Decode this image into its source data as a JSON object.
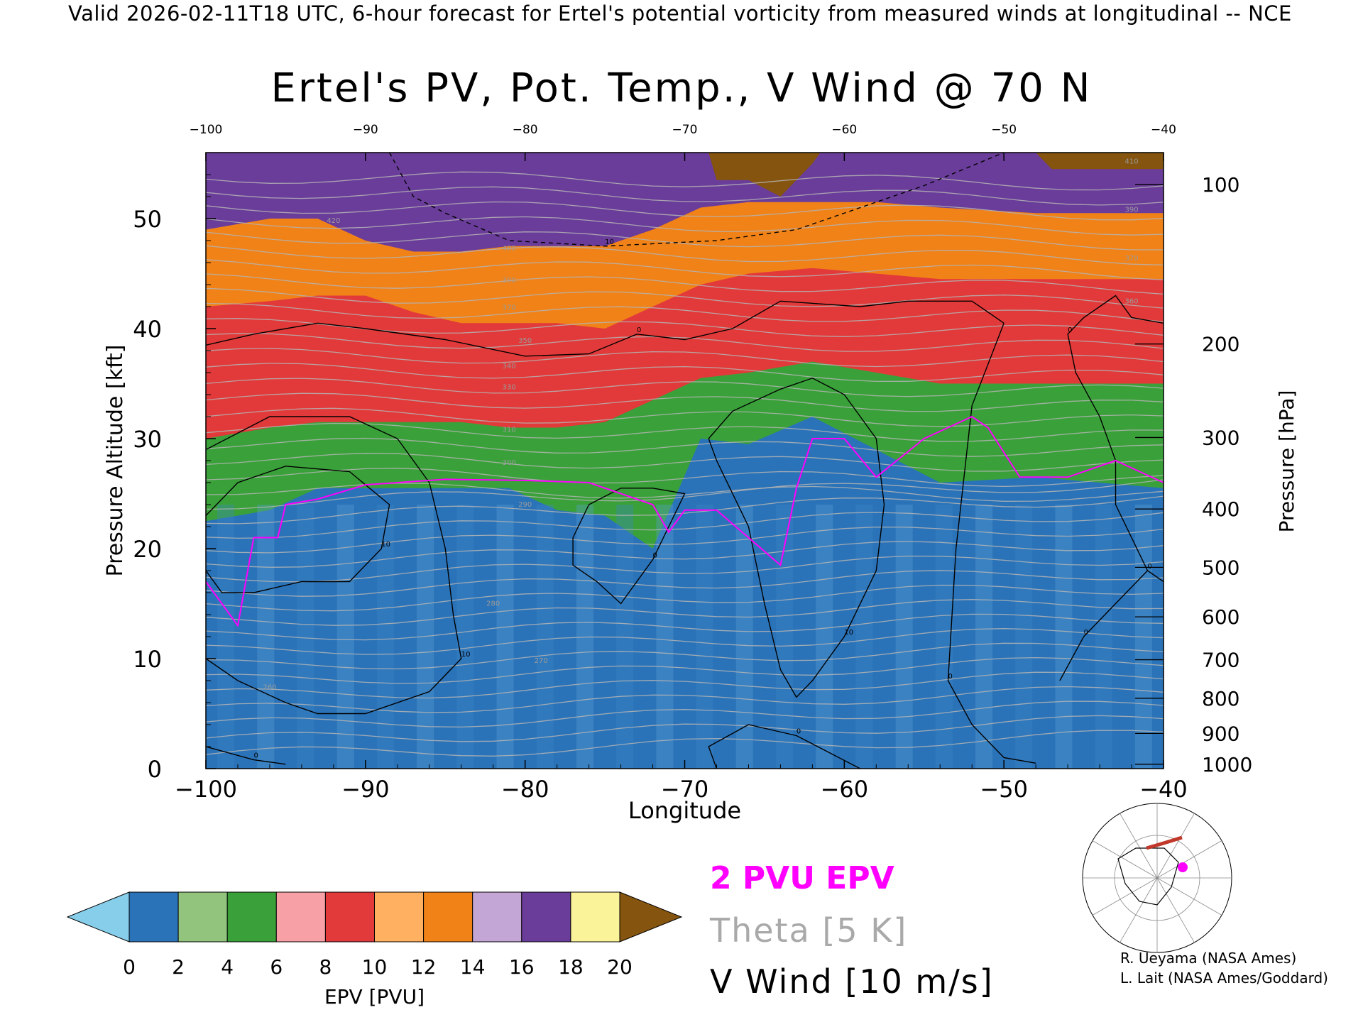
{
  "header": "Valid 2026-02-11T18 UTC, 6-hour forecast for Ertel's potential vorticity from measured winds at longitudinal -- NCE",
  "chart_data": {
    "type": "heatmap",
    "title": "Ertel's PV, Pot. Temp., V Wind @ 70 N",
    "xlabel": "Longitude",
    "ylabel": "Pressure Altitude [kft]",
    "y2label": "Pressure [hPa]",
    "xlim": [
      -100,
      -40
    ],
    "ylim": [
      0,
      56
    ],
    "x_ticks": [
      "−100",
      "−90",
      "−80",
      "−70",
      "−60",
      "−50",
      "−40"
    ],
    "x_top_ticks": [
      "−100",
      "−90",
      "−80",
      "−70",
      "−60",
      "−50",
      "−40"
    ],
    "y_ticks": [
      "0",
      "10",
      "20",
      "30",
      "40",
      "50"
    ],
    "pressure_ticks": [
      {
        "label": "100",
        "kft": 53.1
      },
      {
        "label": "200",
        "kft": 38.6
      },
      {
        "label": "300",
        "kft": 30.1
      },
      {
        "label": "400",
        "kft": 23.6
      },
      {
        "label": "500",
        "kft": 18.3
      },
      {
        "label": "600",
        "kft": 13.8
      },
      {
        "label": "700",
        "kft": 9.9
      },
      {
        "label": "800",
        "kft": 6.4
      },
      {
        "label": "900",
        "kft": 3.2
      },
      {
        "label": "1000",
        "kft": 0.4
      }
    ],
    "layers_pvu": [
      {
        "name": "lower",
        "pvu": 1.0,
        "top_kft": [
          22.5,
          23.5,
          25.5,
          25.5,
          25.5,
          25.5,
          25.5,
          23.5,
          23.0,
          20.0,
          30.0,
          29.5,
          32.0,
          29.0,
          26.0,
          26.5,
          25.5
        ]
      },
      {
        "name": "green",
        "pvu": 5.0,
        "top_kft": [
          30.0,
          31.0,
          31.5,
          31.5,
          31.5,
          31.5,
          31.0,
          31.0,
          31.5,
          33.5,
          35.5,
          36.0,
          37.0,
          36.0,
          35.0,
          35.0,
          35.0
        ]
      },
      {
        "name": "red",
        "pvu": 9.0,
        "top_kft": [
          42.0,
          42.5,
          43.0,
          43.0,
          41.5,
          40.5,
          40.5,
          40.5,
          40.0,
          42.0,
          44.0,
          45.0,
          45.5,
          45.0,
          44.5,
          44.5,
          44.5
        ]
      },
      {
        "name": "orange",
        "pvu": 12.0,
        "top_kft": [
          49.0,
          50.0,
          50.0,
          48.0,
          47.0,
          47.0,
          47.5,
          47.5,
          47.5,
          49.0,
          51.0,
          51.5,
          51.5,
          51.5,
          51.0,
          50.5,
          50.5
        ]
      },
      {
        "name": "purple",
        "pvu": 16.0,
        "top_kft": [
          56.0,
          56.0,
          56.0,
          56.0,
          56.0,
          56.0,
          56.0,
          56.0,
          56.0,
          56.0,
          56.0,
          56.0,
          56.0,
          56.0,
          56.0,
          56.0,
          56.0
        ]
      },
      {
        "name": "yellow",
        "pvu": 19.0,
        "top_kft": [
          56.0,
          56.0,
          56.0,
          56.0,
          56.0,
          56.0,
          56.0,
          56.0,
          55.5,
          54.0,
          55.0,
          55.5,
          56.0,
          56.0,
          56.0,
          56.0,
          56.0
        ]
      }
    ],
    "layer_x": [
      -100,
      -96,
      -93,
      -90,
      -87,
      -84,
      -81,
      -78,
      -75,
      -72,
      -69,
      -66,
      -62,
      -58,
      -54,
      -48,
      -40
    ],
    "theta_labels": [
      {
        "label": "260",
        "x": -96,
        "y": 7.2
      },
      {
        "label": "270",
        "x": -79,
        "y": 9.6
      },
      {
        "label": "280",
        "x": -82,
        "y": 14.8
      },
      {
        "label": "290",
        "x": -80,
        "y": 23.8
      },
      {
        "label": "300",
        "x": -81,
        "y": 27.6
      },
      {
        "label": "310",
        "x": -81,
        "y": 30.6
      },
      {
        "label": "330",
        "x": -81,
        "y": 34.5
      },
      {
        "label": "340",
        "x": -81,
        "y": 36.4
      },
      {
        "label": "350",
        "x": -80,
        "y": 38.7
      },
      {
        "label": "370",
        "x": -81,
        "y": 41.7
      },
      {
        "label": "390",
        "x": -81,
        "y": 44.2
      },
      {
        "label": "400",
        "x": -81,
        "y": 47.1
      },
      {
        "label": "420",
        "x": -92,
        "y": 49.6
      },
      {
        "label": "360",
        "x": -42,
        "y": 42.3
      },
      {
        "label": "370",
        "x": -42,
        "y": 46.2
      },
      {
        "label": "390",
        "x": -42,
        "y": 50.6
      },
      {
        "label": "410",
        "x": -42,
        "y": 55.0
      }
    ],
    "epv_2pvu": [
      {
        "x": -100,
        "y": 17
      },
      {
        "x": -98,
        "y": 13
      },
      {
        "x": -97,
        "y": 21
      },
      {
        "x": -95.5,
        "y": 21
      },
      {
        "x": -95,
        "y": 24
      },
      {
        "x": -93,
        "y": 24.5
      },
      {
        "x": -90,
        "y": 25.8
      },
      {
        "x": -85,
        "y": 26.3
      },
      {
        "x": -80,
        "y": 26.2
      },
      {
        "x": -76,
        "y": 26
      },
      {
        "x": -72,
        "y": 24
      },
      {
        "x": -71,
        "y": 21.5
      },
      {
        "x": -70,
        "y": 23.5
      },
      {
        "x": -68,
        "y": 23.5
      },
      {
        "x": -64,
        "y": 18.5
      },
      {
        "x": -63,
        "y": 25.5
      },
      {
        "x": -62,
        "y": 30
      },
      {
        "x": -60,
        "y": 30
      },
      {
        "x": -58,
        "y": 26.5
      },
      {
        "x": -55,
        "y": 30
      },
      {
        "x": -52,
        "y": 32
      },
      {
        "x": -51,
        "y": 31
      },
      {
        "x": -49,
        "y": 26.5
      },
      {
        "x": -46,
        "y": 26.5
      },
      {
        "x": -43,
        "y": 28
      },
      {
        "x": -40,
        "y": 26
      }
    ],
    "vwind_contours": [
      {
        "label": "10",
        "dashed": true,
        "points": [
          [
            -88.5,
            56
          ],
          [
            -87,
            52
          ],
          [
            -85,
            50.5
          ],
          [
            -81,
            48
          ],
          [
            -75,
            47.5
          ],
          [
            -68,
            48
          ],
          [
            -63,
            49
          ],
          [
            -55,
            53
          ],
          [
            -50,
            56
          ]
        ]
      },
      {
        "label": "0",
        "dashed": false,
        "points": [
          [
            -100,
            38.5
          ],
          [
            -97,
            39.5
          ],
          [
            -93,
            40.5
          ],
          [
            -90,
            40
          ],
          [
            -85,
            39
          ],
          [
            -80,
            37.5
          ],
          [
            -76,
            37.7
          ],
          [
            -73,
            39.5
          ],
          [
            -70,
            39
          ],
          [
            -67,
            40
          ],
          [
            -64,
            42.5
          ],
          [
            -59,
            42
          ],
          [
            -56,
            42.5
          ],
          [
            -52,
            42.5
          ],
          [
            -50,
            40.5
          ]
        ]
      },
      {
        "label": "0",
        "dashed": false,
        "points": [
          [
            -40,
            40.5
          ],
          [
            -42,
            41
          ],
          [
            -43,
            43
          ],
          [
            -45,
            41
          ],
          [
            -46,
            39.5
          ],
          [
            -45.5,
            36
          ],
          [
            -44,
            32
          ],
          [
            -43,
            28
          ]
        ]
      },
      {
        "label": "10",
        "dashed": false,
        "points": [
          [
            -100,
            29
          ],
          [
            -96,
            32
          ],
          [
            -91,
            32
          ],
          [
            -88,
            30
          ],
          [
            -86,
            26
          ],
          [
            -85,
            20
          ],
          [
            -84.5,
            14
          ],
          [
            -84,
            10
          ],
          [
            -86,
            7
          ],
          [
            -90,
            5
          ],
          [
            -93,
            5
          ],
          [
            -95,
            6
          ],
          [
            -98,
            8
          ],
          [
            -100,
            10
          ]
        ]
      },
      {
        "label": "10",
        "dashed": false,
        "points": [
          [
            -100,
            23
          ],
          [
            -98,
            26
          ],
          [
            -95,
            27.5
          ],
          [
            -91,
            27
          ],
          [
            -88.5,
            24
          ],
          [
            -89,
            20
          ],
          [
            -91,
            17
          ],
          [
            -94,
            17
          ],
          [
            -97,
            16
          ],
          [
            -99,
            16
          ],
          [
            -100,
            18
          ]
        ]
      },
      {
        "label": "0",
        "dashed": false,
        "points": [
          [
            -76,
            24
          ],
          [
            -77,
            21
          ],
          [
            -77,
            18.5
          ],
          [
            -75.5,
            17
          ],
          [
            -74,
            15
          ],
          [
            -72,
            19
          ],
          [
            -70,
            25
          ],
          [
            -72,
            25.5
          ],
          [
            -74,
            25.5
          ],
          [
            -76,
            24
          ]
        ]
      },
      {
        "label": "10",
        "dashed": false,
        "points": [
          [
            -68.5,
            30
          ],
          [
            -67,
            32.5
          ],
          [
            -64,
            34.5
          ],
          [
            -62,
            35.5
          ],
          [
            -60,
            34
          ],
          [
            -58,
            30
          ],
          [
            -57.5,
            24
          ],
          [
            -58,
            18
          ],
          [
            -60,
            12
          ],
          [
            -62,
            8
          ],
          [
            -63,
            6.5
          ],
          [
            -64,
            9
          ],
          [
            -65,
            15
          ],
          [
            -66,
            22
          ],
          [
            -68,
            28
          ],
          [
            -68.5,
            30
          ]
        ]
      },
      {
        "label": "0",
        "dashed": false,
        "points": [
          [
            -50,
            40.5
          ],
          [
            -52,
            33
          ],
          [
            -53,
            20
          ],
          [
            -53.5,
            8
          ],
          [
            -52,
            4
          ],
          [
            -50,
            1
          ],
          [
            -48,
            0.5
          ]
        ]
      },
      {
        "label": "0",
        "dashed": false,
        "points": [
          [
            -43,
            28
          ],
          [
            -43,
            24
          ],
          [
            -41,
            18
          ],
          [
            -40,
            17
          ]
        ]
      },
      {
        "label": "0",
        "dashed": false,
        "points": [
          [
            -41,
            18
          ],
          [
            -43,
            15
          ],
          [
            -45,
            12
          ],
          [
            -46.5,
            8
          ]
        ]
      },
      {
        "label": "0",
        "dashed": false,
        "points": [
          [
            -100,
            2
          ],
          [
            -97,
            0.8
          ],
          [
            -95,
            0.4
          ]
        ]
      },
      {
        "label": "0",
        "dashed": false,
        "points": [
          [
            -68,
            0
          ],
          [
            -68.5,
            2
          ],
          [
            -66,
            4
          ],
          [
            -63,
            3
          ],
          [
            -61,
            1.5
          ],
          [
            -59,
            0
          ]
        ]
      }
    ],
    "colorbar": {
      "label": "EPV [PVU]",
      "ticks": [
        "0",
        "2",
        "4",
        "6",
        "8",
        "10",
        "12",
        "14",
        "16",
        "18",
        "20"
      ],
      "colors": [
        "#87ceeb",
        "#2b73b8",
        "#93c47d",
        "#3aa13a",
        "#f7a1a6",
        "#e23a3a",
        "#ffb061",
        "#f08218",
        "#c4a6d6",
        "#6a3d9a",
        "#fbf39a",
        "#85540e"
      ]
    },
    "legend": [
      {
        "label": "2 PVU EPV",
        "color": "#ff00ff"
      },
      {
        "label": "Theta [5 K]",
        "color": "#a9a9a9"
      },
      {
        "label": "V Wind [10 m/s]",
        "color": "#000000"
      }
    ]
  },
  "credits": [
    "R. Ueyama (NASA Ames)",
    "L. Lait (NASA Ames/Goddard)"
  ]
}
